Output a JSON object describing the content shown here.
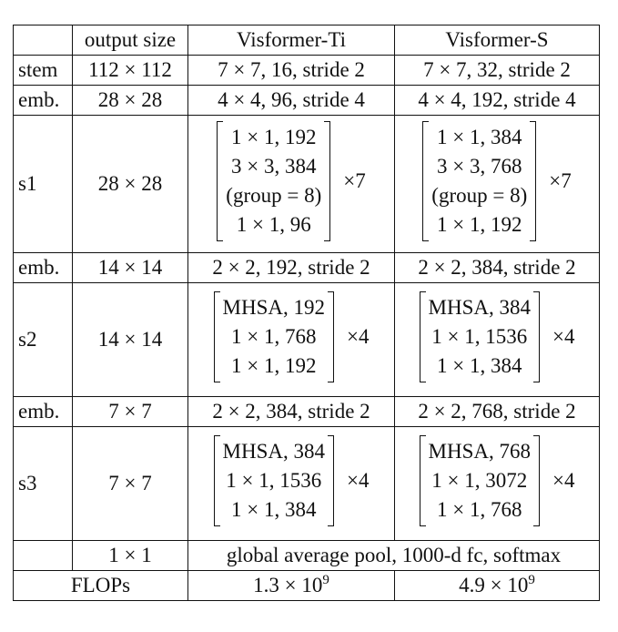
{
  "table": {
    "header": [
      "",
      "output size",
      "Visformer-Ti",
      "Visformer-S"
    ],
    "stem": {
      "label": "stem",
      "output": "112 × 112",
      "ti": "7 × 7, 16, stride 2",
      "s": "7 × 7, 32, stride 2"
    },
    "emb1": {
      "label": "emb.",
      "output": "28 × 28",
      "ti": "4 × 4, 96, stride 4",
      "s": "4 × 4, 192, stride 4"
    },
    "s1": {
      "label": "s1",
      "output": "28 × 28",
      "ti": {
        "rows": [
          "1 × 1, 192",
          "3 × 3, 384",
          "(group = 8)",
          "1 × 1, 96"
        ],
        "repeat": "×7"
      },
      "s": {
        "rows": [
          "1 × 1, 384",
          "3 × 3, 768",
          "(group = 8)",
          "1 × 1, 192"
        ],
        "repeat": "×7"
      }
    },
    "emb2": {
      "label": "emb.",
      "output": "14 × 14",
      "ti": "2 × 2, 192, stride 2",
      "s": "2 × 2, 384, stride 2"
    },
    "s2": {
      "label": "s2",
      "output": "14 × 14",
      "ti": {
        "rows": [
          "MHSA, 192",
          "1 × 1, 768",
          "1 × 1, 192"
        ],
        "repeat": "×4"
      },
      "s": {
        "rows": [
          "MHSA, 384",
          "1 × 1, 1536",
          "1 × 1, 384"
        ],
        "repeat": "×4"
      }
    },
    "emb3": {
      "label": "emb.",
      "output": "7 × 7",
      "ti": "2 × 2, 384, stride 2",
      "s": "2 × 2, 768, stride 2"
    },
    "s3": {
      "label": "s3",
      "output": "7 × 7",
      "ti": {
        "rows": [
          "MHSA, 384",
          "1 × 1, 1536",
          "1 × 1, 384"
        ],
        "repeat": "×4"
      },
      "s": {
        "rows": [
          "MHSA, 768",
          "1 × 1, 3072",
          "1 × 1, 768"
        ],
        "repeat": "×4"
      }
    },
    "head": {
      "label": "",
      "output": "1 × 1",
      "desc": "global average pool, 1000-d fc, softmax"
    },
    "flops": {
      "label": "FLOPs",
      "ti": {
        "base": "1.3 × 10",
        "exp": "9"
      },
      "s": {
        "base": "4.9 × 10",
        "exp": "9"
      }
    }
  }
}
